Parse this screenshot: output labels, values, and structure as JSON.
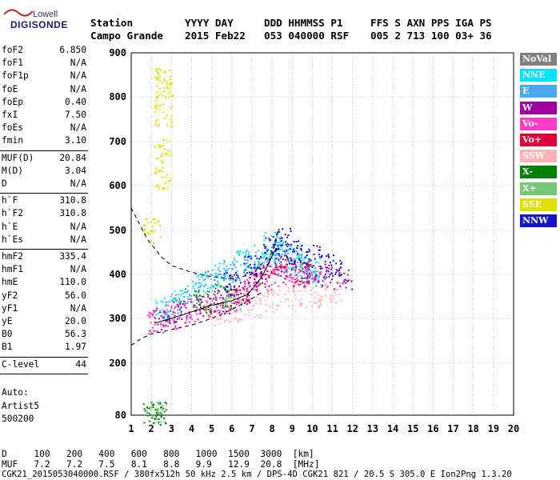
{
  "logo": {
    "line1": "Lowell",
    "line2": "DIGISONDE"
  },
  "header": {
    "row1": [
      {
        "text": "Station",
        "x": 113
      },
      {
        "text": "YYYY DAY",
        "x": 231
      },
      {
        "text": "DDD HHMMSS P1",
        "x": 330
      },
      {
        "text": "FFS S AXN PPS IGA PS",
        "x": 463
      }
    ],
    "row2": [
      {
        "text": "Campo Grande",
        "x": 113
      },
      {
        "text": "2015 Feb22",
        "x": 231
      },
      {
        "text": "053 040000 RSF",
        "x": 330
      },
      {
        "text": "005 2 713 100 03+ 36",
        "x": 463
      }
    ]
  },
  "parameters": [
    {
      "group": [
        {
          "name": "foF2",
          "value": "6.850"
        },
        {
          "name": "foF1",
          "value": "N/A"
        },
        {
          "name": "foF1p",
          "value": "N/A"
        },
        {
          "name": "foE",
          "value": "N/A"
        },
        {
          "name": "foEp",
          "value": "0.40"
        },
        {
          "name": "fxI",
          "value": "7.50"
        },
        {
          "name": "foEs",
          "value": "N/A"
        },
        {
          "name": "fmin",
          "value": "3.10"
        }
      ]
    },
    {
      "group": [
        {
          "name": "MUF(D)",
          "value": "20.84"
        },
        {
          "name": "M(D)",
          "value": "3.04"
        },
        {
          "name": "D",
          "value": "N/A"
        }
      ]
    },
    {
      "group": [
        {
          "name": "h`F",
          "value": "310.8"
        },
        {
          "name": "h`F2",
          "value": "310.8"
        },
        {
          "name": "h`E",
          "value": "N/A"
        },
        {
          "name": "h`Es",
          "value": "N/A"
        }
      ]
    },
    {
      "group": [
        {
          "name": "hmF2",
          "value": "335.4"
        },
        {
          "name": "hmF1",
          "value": "N/A"
        },
        {
          "name": "hmE",
          "value": "110.0"
        },
        {
          "name": "yF2",
          "value": "56.0"
        },
        {
          "name": "yF1",
          "value": "N/A"
        },
        {
          "name": "yE",
          "value": "20.0"
        },
        {
          "name": "B0",
          "value": "56.3"
        },
        {
          "name": "B1",
          "value": "1.97"
        }
      ]
    },
    {
      "group": [
        {
          "name": "C-level",
          "value": "44"
        }
      ]
    }
  ],
  "autoscaling": {
    "line1": "Auto:",
    "line2": "Artist5",
    "line3": "500200"
  },
  "legend": [
    {
      "label": "NoVal",
      "color": "#808080"
    },
    {
      "label": "NNE",
      "color": "#00e0ff"
    },
    {
      "label": "E",
      "color": "#4aa8f0"
    },
    {
      "label": "W",
      "color": "#a000a0"
    },
    {
      "label": "Vo-",
      "color": "#ff3cc8"
    },
    {
      "label": "Vo+",
      "color": "#e0003c"
    },
    {
      "label": "SSW",
      "color": "#ffb4b4"
    },
    {
      "label": "X-",
      "color": "#008000"
    },
    {
      "label": "X+",
      "color": "#78c878"
    },
    {
      "label": "SSE",
      "color": "#e0e000"
    },
    {
      "label": "NNW",
      "color": "#1414c8"
    }
  ],
  "footer": {
    "row_d": {
      "label": "D",
      "values": [
        "100",
        "200",
        "400",
        "600",
        "800",
        "1000",
        "1500",
        "3000",
        "[km]"
      ]
    },
    "row_muf": {
      "label": "MUF",
      "values": [
        "7.2",
        "7.2",
        "7.5",
        "8.1",
        "8.8",
        "9.9",
        "12.9",
        "20.8",
        "[MHz]"
      ]
    },
    "info": "CGK21_2015053040000.RSF / 380fx512h 50 kHz 2.5 km / DPS-4D CGK21 821 / 20.5 S 305.0 E Ion2Png 1.3.20"
  },
  "chart_data": {
    "type": "scatter",
    "title": "",
    "xlabel": "",
    "ylabel": "",
    "xlim": [
      1,
      20
    ],
    "ylim": [
      80,
      900
    ],
    "x_ticks": [
      1,
      2,
      3,
      4,
      5,
      6,
      7,
      8,
      9,
      10,
      11,
      12,
      13,
      14,
      15,
      16,
      17,
      18,
      19,
      20
    ],
    "y_ticks": [
      80,
      200,
      300,
      400,
      500,
      600,
      700,
      800,
      900
    ],
    "grid": true,
    "series": [
      {
        "name": "NNE",
        "color": "#00e0ff",
        "description_points": [
          [
            2.5,
            320
          ],
          [
            3.5,
            340
          ],
          [
            4.5,
            380
          ],
          [
            5.5,
            400
          ],
          [
            6.5,
            430
          ],
          [
            7.5,
            440
          ],
          [
            8,
            470
          ],
          [
            8.5,
            450
          ],
          [
            9,
            440
          ],
          [
            9.5,
            420
          ],
          [
            10,
            410
          ]
        ]
      },
      {
        "name": "E",
        "color": "#4aa8f0",
        "points": [
          [
            3,
            330
          ],
          [
            4,
            360
          ],
          [
            5,
            390
          ],
          [
            6,
            410
          ],
          [
            7,
            430
          ],
          [
            8,
            450
          ],
          [
            9,
            430
          ],
          [
            10,
            400
          ]
        ]
      },
      {
        "name": "W",
        "color": "#a000a0",
        "points": [
          [
            2.5,
            300
          ],
          [
            3.5,
            315
          ],
          [
            4.5,
            330
          ],
          [
            5.5,
            340
          ],
          [
            6.5,
            360
          ],
          [
            7.5,
            400
          ],
          [
            8.5,
            420
          ],
          [
            9.5,
            410
          ],
          [
            10.5,
            400
          ],
          [
            11.5,
            395
          ]
        ]
      },
      {
        "name": "Vo-",
        "color": "#ff3cc8",
        "points": [
          [
            2.2,
            295
          ],
          [
            3,
            305
          ],
          [
            4,
            320
          ],
          [
            5,
            330
          ],
          [
            6,
            345
          ],
          [
            7,
            380
          ],
          [
            8,
            400
          ],
          [
            9,
            400
          ],
          [
            10,
            395
          ]
        ]
      },
      {
        "name": "Vo+",
        "color": "#e0003c",
        "points": [
          [
            6.5,
            360
          ],
          [
            7.5,
            390
          ],
          [
            8.5,
            410
          ],
          [
            9.5,
            400
          ]
        ]
      },
      {
        "name": "SSW",
        "color": "#ffb4b4",
        "points": [
          [
            5,
            310
          ],
          [
            6,
            320
          ],
          [
            7,
            330
          ],
          [
            8,
            340
          ],
          [
            9,
            345
          ],
          [
            10,
            350
          ],
          [
            11,
            360
          ]
        ]
      },
      {
        "name": "X-",
        "color": "#008000",
        "points": [
          [
            2,
            85
          ],
          [
            2.3,
            86
          ],
          [
            4.5,
            340
          ],
          [
            5.5,
            350
          ]
        ]
      },
      {
        "name": "X+",
        "color": "#78c878",
        "points": [
          [
            2.2,
            86
          ],
          [
            6,
            350
          ]
        ]
      },
      {
        "name": "SSE",
        "color": "#e0e000",
        "points": [
          [
            2,
            500
          ],
          [
            2.5,
            620
          ],
          [
            2.5,
            680
          ],
          [
            2.6,
            760
          ],
          [
            2.6,
            820
          ],
          [
            2.55,
            840
          ]
        ]
      },
      {
        "name": "NNW",
        "color": "#1414c8",
        "points": [
          [
            6,
            380
          ],
          [
            7,
            420
          ],
          [
            8,
            460
          ],
          [
            8.5,
            480
          ],
          [
            9,
            450
          ],
          [
            10,
            440
          ],
          [
            11,
            420
          ]
        ]
      }
    ],
    "profile_curves": [
      {
        "style": "dashed",
        "points": [
          [
            1,
            550
          ],
          [
            1.8,
            480
          ],
          [
            2.5,
            440
          ],
          [
            3,
            420
          ],
          [
            4,
            405
          ],
          [
            5,
            395
          ],
          [
            6,
            390
          ],
          [
            7,
            400
          ],
          [
            8,
            450
          ],
          [
            8.3,
            500
          ]
        ]
      },
      {
        "style": "dashed",
        "points": [
          [
            1,
            240
          ],
          [
            1.5,
            255
          ],
          [
            2,
            265
          ],
          [
            3,
            275
          ],
          [
            4,
            285
          ],
          [
            5,
            300
          ],
          [
            6,
            320
          ],
          [
            7,
            345
          ],
          [
            7.5,
            360
          ]
        ]
      },
      {
        "style": "solid",
        "points": [
          [
            2.2,
            290
          ],
          [
            3,
            300
          ],
          [
            4,
            315
          ],
          [
            5,
            330
          ],
          [
            6,
            340
          ],
          [
            6.8,
            355
          ],
          [
            7.5,
            395
          ],
          [
            8.2,
            460
          ]
        ]
      }
    ]
  }
}
